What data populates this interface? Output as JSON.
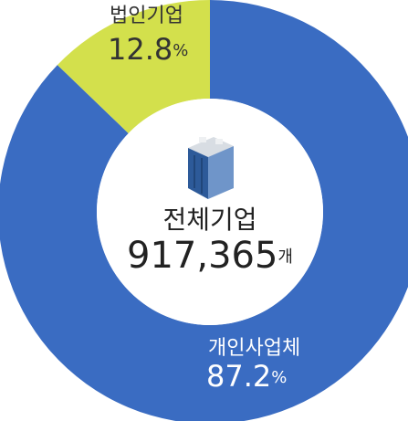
{
  "chart_data": {
    "type": "donut",
    "categories": [
      "개인사업체",
      "법인기업"
    ],
    "values": [
      87.2,
      12.8
    ],
    "colors": [
      "#3a6cc2",
      "#d3e04c"
    ],
    "unit": "%",
    "center_label": "전체기업",
    "center_value": {
      "value": 917365,
      "label": "917,365"
    },
    "center_unit": "개"
  }
}
